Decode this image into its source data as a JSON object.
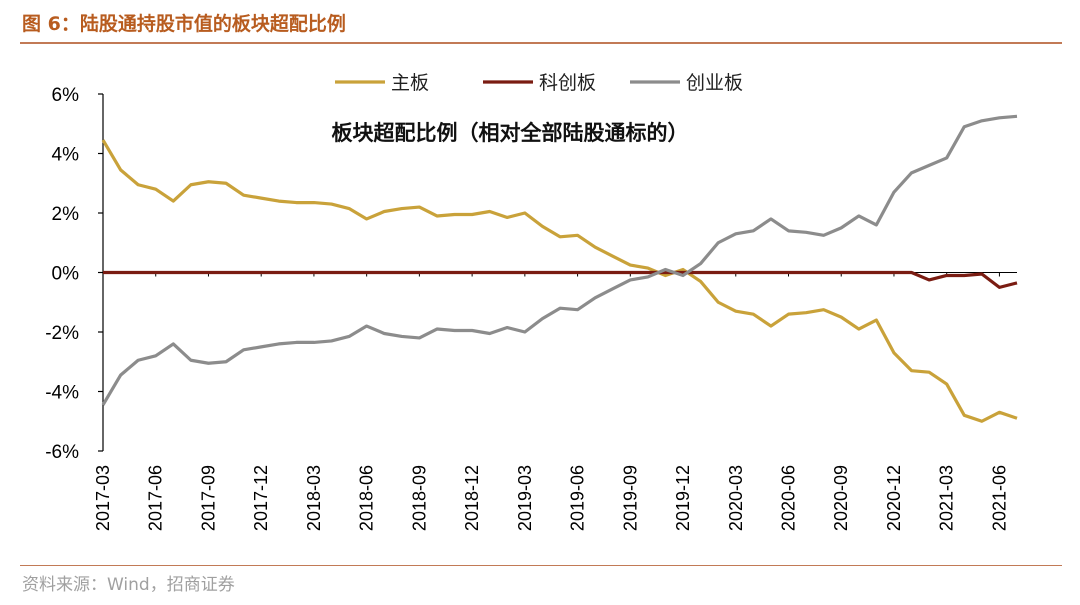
{
  "figure_title": "图 6：陆股通持股市值的板块超配比例",
  "source": "资料来源：Wind，招商证券",
  "chart_data": {
    "type": "line",
    "title": "板块超配比例（相对全部陆股通标的）",
    "xlabel": "",
    "ylabel": "",
    "ylim": [
      -6,
      6
    ],
    "y_tick_labels": [
      "6%",
      "4%",
      "2%",
      "0%",
      "-2%",
      "-4%",
      "-6%"
    ],
    "y_unit": "%",
    "x_tick_labels": [
      "2017-03",
      "2017-06",
      "2017-09",
      "2017-12",
      "2018-03",
      "2018-06",
      "2018-09",
      "2018-12",
      "2019-03",
      "2019-06",
      "2019-09",
      "2019-12",
      "2020-03",
      "2020-06",
      "2020-09",
      "2020-12",
      "2021-03",
      "2021-06"
    ],
    "x": [
      "2017-03",
      "2017-04",
      "2017-05",
      "2017-06",
      "2017-07",
      "2017-08",
      "2017-09",
      "2017-10",
      "2017-11",
      "2017-12",
      "2018-01",
      "2018-02",
      "2018-03",
      "2018-04",
      "2018-05",
      "2018-06",
      "2018-07",
      "2018-08",
      "2018-09",
      "2018-10",
      "2018-11",
      "2018-12",
      "2019-01",
      "2019-02",
      "2019-03",
      "2019-04",
      "2019-05",
      "2019-06",
      "2019-07",
      "2019-08",
      "2019-09",
      "2019-10",
      "2019-11",
      "2019-12",
      "2020-01",
      "2020-02",
      "2020-03",
      "2020-04",
      "2020-05",
      "2020-06",
      "2020-07",
      "2020-08",
      "2020-09",
      "2020-10",
      "2020-11",
      "2020-12",
      "2021-01",
      "2021-02",
      "2021-03",
      "2021-04",
      "2021-05",
      "2021-06",
      "2021-07"
    ],
    "legend_position": "top-center",
    "grid": false,
    "series": [
      {
        "name": "主板",
        "color": "#c9a23a",
        "values": [
          4.45,
          3.45,
          2.95,
          2.8,
          2.4,
          2.95,
          3.05,
          3.0,
          2.6,
          2.5,
          2.4,
          2.35,
          2.35,
          2.3,
          2.15,
          1.8,
          2.05,
          2.15,
          2.2,
          1.9,
          1.95,
          1.95,
          2.05,
          1.85,
          2.0,
          1.55,
          1.2,
          1.25,
          0.85,
          0.55,
          0.25,
          0.15,
          -0.1,
          0.1,
          -0.3,
          -1.0,
          -1.3,
          -1.4,
          -1.8,
          -1.4,
          -1.35,
          -1.25,
          -1.5,
          -1.9,
          -1.6,
          -2.7,
          -3.3,
          -3.35,
          -3.75,
          -4.8,
          -5.0,
          -4.7,
          -4.9
        ]
      },
      {
        "name": "科创板",
        "color": "#7a1c12",
        "values": [
          0,
          0,
          0,
          0,
          0,
          0,
          0,
          0,
          0,
          0,
          0,
          0,
          0,
          0,
          0,
          0,
          0,
          0,
          0,
          0,
          0,
          0,
          0,
          0,
          0,
          0,
          0,
          0,
          0,
          0,
          0,
          0,
          0,
          0,
          0,
          0,
          0,
          0,
          0,
          0,
          0,
          0,
          0,
          0,
          0,
          0,
          0,
          -0.25,
          -0.1,
          -0.1,
          -0.05,
          -0.5,
          -0.35
        ]
      },
      {
        "name": "创业板",
        "color": "#8c8c8c",
        "values": [
          -4.45,
          -3.45,
          -2.95,
          -2.8,
          -2.4,
          -2.95,
          -3.05,
          -3.0,
          -2.6,
          -2.5,
          -2.4,
          -2.35,
          -2.35,
          -2.3,
          -2.15,
          -1.8,
          -2.05,
          -2.15,
          -2.2,
          -1.9,
          -1.95,
          -1.95,
          -2.05,
          -1.85,
          -2.0,
          -1.55,
          -1.2,
          -1.25,
          -0.85,
          -0.55,
          -0.25,
          -0.15,
          0.1,
          -0.1,
          0.3,
          1.0,
          1.3,
          1.4,
          1.8,
          1.4,
          1.35,
          1.25,
          1.5,
          1.9,
          1.6,
          2.7,
          3.35,
          3.6,
          3.85,
          4.9,
          5.1,
          5.2,
          5.25
        ]
      }
    ]
  }
}
